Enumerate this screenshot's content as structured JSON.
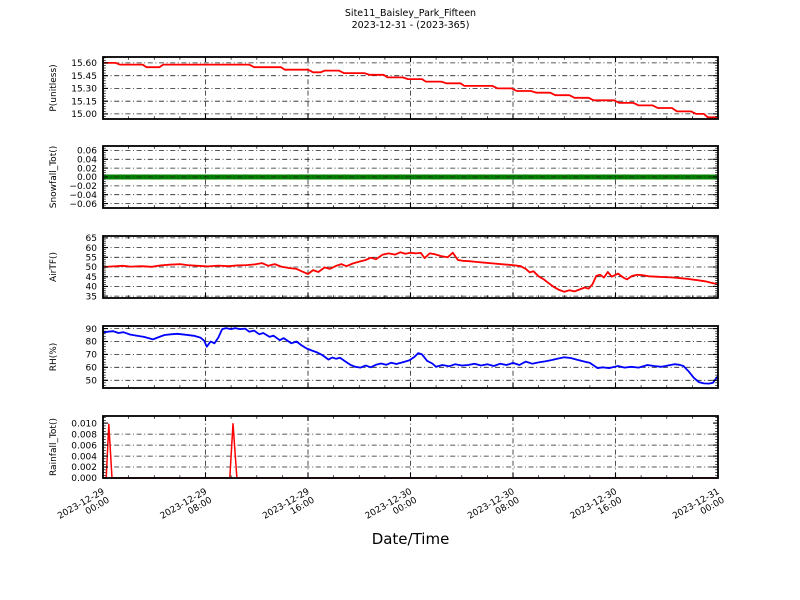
{
  "header": {
    "title": "Site11_Baisley_Park_Fifteen",
    "subtitle": "2023-12-31 - (2023-365)"
  },
  "x_axis_title": "Date/Time",
  "colors": {
    "red": "#ff0000",
    "green": "#008000",
    "blue": "#0000ff",
    "grid": "#222222",
    "spine": "#000000"
  },
  "x_axis": {
    "xlim": [
      0,
      48
    ],
    "minor_step": 2,
    "major_ticks": [
      {
        "h": 0,
        "date": "2023-12-29",
        "time": "00:00"
      },
      {
        "h": 8,
        "date": "2023-12-29",
        "time": "08:00"
      },
      {
        "h": 16,
        "date": "2023-12-29",
        "time": "16:00"
      },
      {
        "h": 24,
        "date": "2023-12-30",
        "time": "00:00"
      },
      {
        "h": 32,
        "date": "2023-12-30",
        "time": "08:00"
      },
      {
        "h": 40,
        "date": "2023-12-30",
        "time": "16:00"
      },
      {
        "h": 48,
        "date": "2023-12-31",
        "time": "00:00"
      }
    ]
  },
  "chart_data": {
    "type": "line",
    "panels": [
      {
        "id": "P",
        "ylabel": "P(unitless)",
        "color": "#ff0000",
        "line_width": 1.8,
        "ylim": [
          14.94,
          15.67
        ],
        "yticks": [
          15.6,
          15.45,
          15.3,
          15.15,
          15.0
        ],
        "ytick_labels": [
          "15.60",
          "15.45",
          "15.30",
          "15.15",
          "15.00"
        ],
        "yminor_step": 0.03,
        "series": [
          [
            0,
            15.6
          ],
          [
            1.0,
            15.6
          ],
          [
            1.3,
            15.58
          ],
          [
            3.1,
            15.58
          ],
          [
            3.4,
            15.55
          ],
          [
            4.4,
            15.55
          ],
          [
            4.7,
            15.58
          ],
          [
            11.4,
            15.58
          ],
          [
            11.8,
            15.55
          ],
          [
            13.9,
            15.55
          ],
          [
            14.2,
            15.52
          ],
          [
            16.0,
            15.52
          ],
          [
            16.4,
            15.49
          ],
          [
            17.0,
            15.49
          ],
          [
            17.3,
            15.51
          ],
          [
            18.4,
            15.51
          ],
          [
            18.8,
            15.48
          ],
          [
            20.4,
            15.48
          ],
          [
            20.8,
            15.46
          ],
          [
            21.9,
            15.46
          ],
          [
            22.2,
            15.43
          ],
          [
            23.4,
            15.43
          ],
          [
            23.8,
            15.41
          ],
          [
            24.9,
            15.41
          ],
          [
            25.2,
            15.38
          ],
          [
            26.4,
            15.38
          ],
          [
            26.8,
            15.36
          ],
          [
            27.9,
            15.36
          ],
          [
            28.2,
            15.33
          ],
          [
            30.4,
            15.33
          ],
          [
            30.8,
            15.3
          ],
          [
            31.9,
            15.3
          ],
          [
            32.3,
            15.27
          ],
          [
            33.4,
            15.27
          ],
          [
            33.8,
            15.25
          ],
          [
            34.9,
            15.25
          ],
          [
            35.3,
            15.22
          ],
          [
            36.4,
            15.22
          ],
          [
            36.8,
            15.19
          ],
          [
            37.9,
            15.19
          ],
          [
            38.3,
            15.16
          ],
          [
            39.9,
            15.16
          ],
          [
            40.3,
            15.13
          ],
          [
            41.4,
            15.13
          ],
          [
            41.8,
            15.1
          ],
          [
            42.9,
            15.1
          ],
          [
            43.3,
            15.07
          ],
          [
            44.4,
            15.07
          ],
          [
            44.8,
            15.03
          ],
          [
            45.9,
            15.03
          ],
          [
            46.3,
            15.0
          ],
          [
            46.9,
            15.0
          ],
          [
            47.2,
            14.96
          ],
          [
            48,
            14.96
          ]
        ]
      },
      {
        "id": "Snowfall_Tot",
        "ylabel": "Snowfall_Tot()",
        "color": "#008000",
        "line_width": 5,
        "grid_on_top": true,
        "ylim": [
          -0.07,
          0.07
        ],
        "yticks": [
          0.06,
          0.04,
          0.02,
          0.0,
          -0.02,
          -0.04,
          -0.06
        ],
        "ytick_labels": [
          "0.06",
          "0.04",
          "0.02",
          "0.00",
          "−0.02",
          "−0.04",
          "−0.06"
        ],
        "yminor_step": 0.005,
        "series": [
          [
            0,
            0
          ],
          [
            48,
            0
          ]
        ]
      },
      {
        "id": "AirTF",
        "ylabel": "AirTF()",
        "color": "#ff0000",
        "line_width": 1.8,
        "ylim": [
          34,
          66
        ],
        "yticks": [
          65,
          60,
          55,
          50,
          45,
          40,
          35
        ],
        "ytick_labels": [
          "65",
          "60",
          "55",
          "50",
          "45",
          "40",
          "35"
        ],
        "yminor_step": 1,
        "series": [
          [
            0,
            50
          ],
          [
            0.8,
            50.3
          ],
          [
            1.5,
            50.6
          ],
          [
            2.2,
            50.2
          ],
          [
            3,
            50.4
          ],
          [
            3.8,
            50.1
          ],
          [
            4.5,
            50.8
          ],
          [
            5.2,
            51.2
          ],
          [
            6,
            51.5
          ],
          [
            6.6,
            51
          ],
          [
            7.4,
            50.6
          ],
          [
            8.2,
            50.3
          ],
          [
            9,
            50.7
          ],
          [
            9.8,
            50.4
          ],
          [
            10.5,
            50.8
          ],
          [
            11.2,
            51
          ],
          [
            11.9,
            51.4
          ],
          [
            12.4,
            52
          ],
          [
            12.9,
            50.6
          ],
          [
            13.4,
            51.5
          ],
          [
            13.9,
            50.2
          ],
          [
            14.5,
            49.5
          ],
          [
            15.1,
            49
          ],
          [
            15.6,
            47.5
          ],
          [
            16,
            46.4
          ],
          [
            16.4,
            48.4
          ],
          [
            16.8,
            47.4
          ],
          [
            17.3,
            49.8
          ],
          [
            17.7,
            49
          ],
          [
            18.2,
            50.6
          ],
          [
            18.6,
            51.5
          ],
          [
            19,
            50.4
          ],
          [
            19.5,
            51.8
          ],
          [
            20,
            52.8
          ],
          [
            20.5,
            53.6
          ],
          [
            20.9,
            54.8
          ],
          [
            21.3,
            54
          ],
          [
            21.8,
            56.3
          ],
          [
            22.3,
            57
          ],
          [
            22.8,
            56.4
          ],
          [
            23.2,
            57.6
          ],
          [
            23.6,
            56.8
          ],
          [
            24,
            57.4
          ],
          [
            24.4,
            57
          ],
          [
            24.8,
            57.3
          ],
          [
            25.1,
            54.6
          ],
          [
            25.5,
            57
          ],
          [
            25.9,
            56.6
          ],
          [
            26.4,
            55.6
          ],
          [
            26.9,
            55
          ],
          [
            27.3,
            57.4
          ],
          [
            27.7,
            53.6
          ],
          [
            28.1,
            53.2
          ],
          [
            28.6,
            53
          ],
          [
            29.2,
            52.6
          ],
          [
            29.8,
            52.2
          ],
          [
            30.5,
            51.8
          ],
          [
            31.2,
            51.4
          ],
          [
            32,
            51
          ],
          [
            32.6,
            50.4
          ],
          [
            33,
            49
          ],
          [
            33.3,
            47.2
          ],
          [
            33.6,
            47.8
          ],
          [
            34,
            45.2
          ],
          [
            34.4,
            43.6
          ],
          [
            34.8,
            41.6
          ],
          [
            35.2,
            39.6
          ],
          [
            35.6,
            38.2
          ],
          [
            36,
            37.2
          ],
          [
            36.4,
            38
          ],
          [
            36.8,
            37.4
          ],
          [
            37.2,
            38.4
          ],
          [
            37.6,
            39.4
          ],
          [
            37.9,
            38.8
          ],
          [
            38.2,
            41
          ],
          [
            38.5,
            45.4
          ],
          [
            38.8,
            46
          ],
          [
            39.1,
            44.6
          ],
          [
            39.4,
            47.4
          ],
          [
            39.7,
            45
          ],
          [
            40.2,
            46.6
          ],
          [
            40.6,
            44.6
          ],
          [
            40.9,
            43.6
          ],
          [
            41.3,
            45.4
          ],
          [
            41.7,
            46
          ],
          [
            42.1,
            45.8
          ],
          [
            42.6,
            45.2
          ],
          [
            43.2,
            45
          ],
          [
            43.8,
            44.8
          ],
          [
            44.5,
            44.6
          ],
          [
            45.1,
            44.2
          ],
          [
            45.7,
            43.8
          ],
          [
            46.4,
            43.2
          ],
          [
            47,
            42.6
          ],
          [
            47.5,
            41.8
          ],
          [
            48,
            41
          ]
        ]
      },
      {
        "id": "RH",
        "ylabel": "RH(%)",
        "color": "#0000ff",
        "line_width": 1.8,
        "ylim": [
          44,
          92
        ],
        "yticks": [
          90,
          80,
          70,
          60,
          50
        ],
        "ytick_labels": [
          "90",
          "80",
          "70",
          "60",
          "50"
        ],
        "yminor_step": 2,
        "series": [
          [
            0,
            87
          ],
          [
            0.4,
            87.6
          ],
          [
            0.8,
            88
          ],
          [
            1.2,
            86.6
          ],
          [
            1.6,
            87.2
          ],
          [
            2.1,
            85.4
          ],
          [
            2.6,
            84.6
          ],
          [
            3.2,
            83.6
          ],
          [
            3.9,
            81.6
          ],
          [
            4.4,
            83.6
          ],
          [
            4.8,
            85
          ],
          [
            5.3,
            85.6
          ],
          [
            5.8,
            86
          ],
          [
            6.5,
            85.2
          ],
          [
            7.1,
            84.4
          ],
          [
            7.6,
            83
          ],
          [
            7.9,
            80.6
          ],
          [
            8.1,
            76
          ],
          [
            8.4,
            80
          ],
          [
            8.7,
            78.6
          ],
          [
            9,
            83
          ],
          [
            9.3,
            89.6
          ],
          [
            9.6,
            90.4
          ],
          [
            10,
            89.6
          ],
          [
            10.3,
            90.4
          ],
          [
            10.7,
            89.6
          ],
          [
            11.1,
            90
          ],
          [
            11.4,
            87.6
          ],
          [
            11.8,
            88.4
          ],
          [
            12.2,
            85.6
          ],
          [
            12.5,
            86.6
          ],
          [
            13,
            83.6
          ],
          [
            13.3,
            84.6
          ],
          [
            13.8,
            81
          ],
          [
            14.1,
            82.6
          ],
          [
            14.7,
            78.6
          ],
          [
            15.1,
            80
          ],
          [
            15.5,
            77
          ],
          [
            15.9,
            74.6
          ],
          [
            16.3,
            73
          ],
          [
            16.7,
            71.6
          ],
          [
            17.1,
            69.6
          ],
          [
            17.6,
            66
          ],
          [
            17.9,
            67.6
          ],
          [
            18.2,
            66.6
          ],
          [
            18.5,
            67.4
          ],
          [
            18.9,
            64.6
          ],
          [
            19.3,
            62
          ],
          [
            19.7,
            60.4
          ],
          [
            20.1,
            59.8
          ],
          [
            20.5,
            61.4
          ],
          [
            20.9,
            60
          ],
          [
            21.3,
            62
          ],
          [
            21.7,
            63
          ],
          [
            22.1,
            62
          ],
          [
            22.5,
            63.6
          ],
          [
            22.9,
            62.6
          ],
          [
            23.4,
            64
          ],
          [
            23.9,
            65.4
          ],
          [
            24.3,
            68
          ],
          [
            24.6,
            71
          ],
          [
            24.9,
            70
          ],
          [
            25.3,
            65
          ],
          [
            25.7,
            63
          ],
          [
            26,
            60.4
          ],
          [
            26.5,
            61.8
          ],
          [
            27,
            60.8
          ],
          [
            27.5,
            62.4
          ],
          [
            28,
            61.4
          ],
          [
            28.5,
            61.8
          ],
          [
            29,
            62.8
          ],
          [
            29.5,
            61.4
          ],
          [
            30,
            62.4
          ],
          [
            30.5,
            61
          ],
          [
            31,
            62.8
          ],
          [
            31.5,
            61.8
          ],
          [
            32,
            63.4
          ],
          [
            32.5,
            61.8
          ],
          [
            33,
            64.4
          ],
          [
            33.5,
            62.8
          ],
          [
            34,
            63.8
          ],
          [
            34.5,
            64.6
          ],
          [
            35,
            65.6
          ],
          [
            35.5,
            66.8
          ],
          [
            36,
            67.8
          ],
          [
            36.5,
            67.2
          ],
          [
            37,
            65.8
          ],
          [
            37.5,
            64.6
          ],
          [
            38,
            63.4
          ],
          [
            38.6,
            59.4
          ],
          [
            39,
            60
          ],
          [
            39.5,
            59.4
          ],
          [
            40.2,
            61
          ],
          [
            40.7,
            59.8
          ],
          [
            41.2,
            60.4
          ],
          [
            41.8,
            59.8
          ],
          [
            42.5,
            61.8
          ],
          [
            43,
            61
          ],
          [
            43.6,
            60.4
          ],
          [
            44.1,
            61.4
          ],
          [
            44.6,
            62.4
          ],
          [
            45,
            62
          ],
          [
            45.3,
            61
          ],
          [
            45.7,
            57
          ],
          [
            46.1,
            52
          ],
          [
            46.5,
            48.6
          ],
          [
            46.9,
            47.6
          ],
          [
            47.3,
            47.4
          ],
          [
            47.6,
            48
          ],
          [
            47.9,
            52
          ],
          [
            48,
            53.4
          ]
        ]
      },
      {
        "id": "Rainfall_Tot",
        "ylabel": "Rainfall_Tot()",
        "color": "#ff0000",
        "line_width": 1.5,
        "ylim": [
          0,
          0.0113
        ],
        "yticks": [
          0.01,
          0.008,
          0.006,
          0.004,
          0.002,
          0.0
        ],
        "ytick_labels": [
          "0.010",
          "0.008",
          "0.006",
          "0.004",
          "0.002",
          "0.000"
        ],
        "grid_y": [
          0.008,
          0.006,
          0.004,
          0.002
        ],
        "yminor_step": 0.0005,
        "series": [
          [
            0,
            0
          ],
          [
            0.25,
            0
          ],
          [
            0.45,
            0.0098
          ],
          [
            0.7,
            0
          ],
          [
            9.9,
            0
          ],
          [
            10.15,
            0.0099
          ],
          [
            10.45,
            0
          ],
          [
            48,
            0
          ]
        ]
      }
    ]
  }
}
